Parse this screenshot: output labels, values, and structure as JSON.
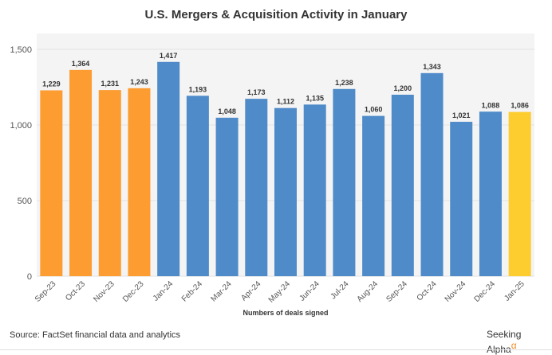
{
  "chart_data": {
    "type": "bar",
    "title": "U.S. Mergers & Acquisition Activity in January",
    "xlabel": "Numbers of deals signed",
    "ylabel": "",
    "ylim": [
      0,
      1500
    ],
    "yticks": [
      0,
      500,
      1000,
      1500
    ],
    "ytick_labels": [
      "0",
      "500",
      "1,000",
      "1,500"
    ],
    "categories": [
      "Sep-23",
      "Oct-23",
      "Nov-23",
      "Dec-23",
      "Jan-24",
      "Feb-24",
      "Mar-24",
      "Apr-24",
      "May-24",
      "Jun-24",
      "Jul-24",
      "Aug-24",
      "Sep-24",
      "Oct-24",
      "Nov-24",
      "Dec-24",
      "Jan-25"
    ],
    "values": [
      1229,
      1364,
      1231,
      1243,
      1417,
      1193,
      1048,
      1173,
      1112,
      1135,
      1238,
      1060,
      1200,
      1343,
      1021,
      1088,
      1086
    ],
    "value_labels": [
      "1,229",
      "1,364",
      "1,231",
      "1,243",
      "1,417",
      "1,193",
      "1,048",
      "1,173",
      "1,112",
      "1,135",
      "1,238",
      "1,060",
      "1,200",
      "1,343",
      "1,021",
      "1,088",
      "1,086"
    ],
    "colors": [
      "#fd9c30",
      "#fd9c30",
      "#fd9c30",
      "#fd9c30",
      "#4f8bc9",
      "#4f8bc9",
      "#4f8bc9",
      "#4f8bc9",
      "#4f8bc9",
      "#4f8bc9",
      "#4f8bc9",
      "#4f8bc9",
      "#4f8bc9",
      "#4f8bc9",
      "#4f8bc9",
      "#4f8bc9",
      "#fdcd30"
    ],
    "grid": true
  },
  "footer": {
    "source": "Source: FactSet financial data and analytics",
    "logo": "Seeking Alpha",
    "logo_mark": "α"
  }
}
